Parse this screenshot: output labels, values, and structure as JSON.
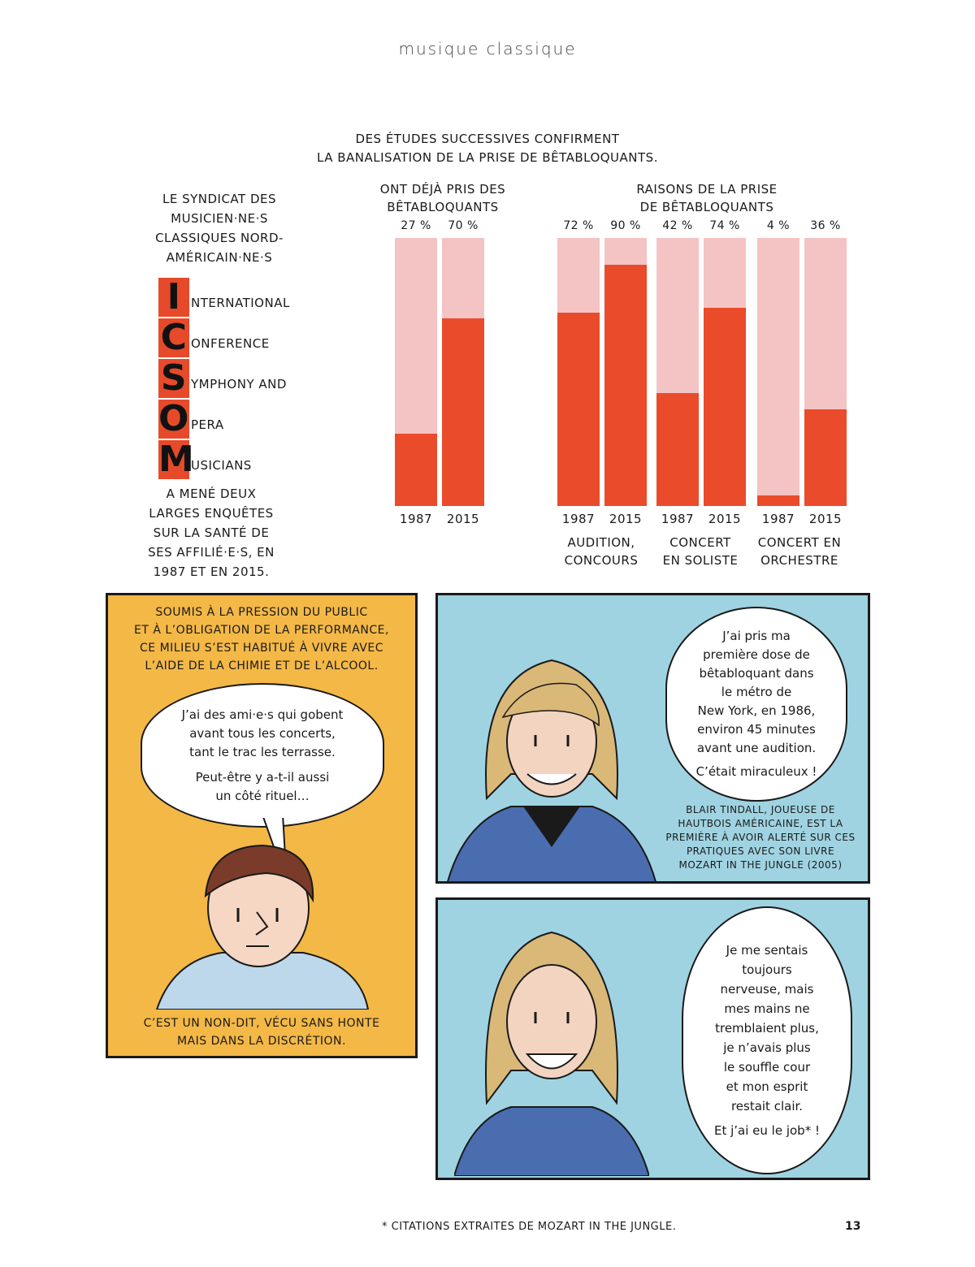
{
  "header": {
    "title": "musique classique"
  },
  "chart": {
    "title_line1": "Des études successives confirment",
    "title_line2": "la banalisation de la prise de bêtabloquants.",
    "group1_label_line1": "Ont déjà pris des",
    "group1_label_line2": "bêtabloquants",
    "group2_label_line1": "Raisons de la prise",
    "group2_label_line2": "de bêtabloquants",
    "categories": [
      {
        "line1": "Audition,",
        "line2": "concours"
      },
      {
        "line1": "Concert",
        "line2": "en soliste"
      },
      {
        "line1": "Concert en",
        "line2": "orchestre"
      }
    ]
  },
  "chart_data": {
    "type": "bar",
    "unit": "%",
    "ylim": [
      0,
      100
    ],
    "bars": [
      {
        "group": "Ont déjà pris des bêtabloquants",
        "year": "1987",
        "value": 27,
        "label": "27 %"
      },
      {
        "group": "Ont déjà pris des bêtabloquants",
        "year": "2015",
        "value": 70,
        "label": "70 %"
      },
      {
        "group": "Audition, concours",
        "year": "1987",
        "value": 72,
        "label": "72 %"
      },
      {
        "group": "Audition, concours",
        "year": "2015",
        "value": 90,
        "label": "90 %"
      },
      {
        "group": "Concert en soliste",
        "year": "1987",
        "value": 42,
        "label": "42 %"
      },
      {
        "group": "Concert en soliste",
        "year": "2015",
        "value": 74,
        "label": "74 %"
      },
      {
        "group": "Concert en orchestre",
        "year": "1987",
        "value": 4,
        "label": "4 %"
      },
      {
        "group": "Concert en orchestre",
        "year": "2015",
        "value": 36,
        "label": "36 %"
      }
    ]
  },
  "icsom": {
    "intro": [
      "Le syndicat des",
      "musicien·ne·s",
      "classiques nord-",
      "américain·ne·s"
    ],
    "rows": [
      {
        "letter": "I",
        "rest": "nternational"
      },
      {
        "letter": "C",
        "rest": "onference"
      },
      {
        "letter": "S",
        "rest": "ymphony and"
      },
      {
        "letter": "O",
        "rest": "pera"
      },
      {
        "letter": "M",
        "rest": "usicians"
      }
    ],
    "outro": [
      "a mené deux",
      "larges enquêtes",
      "sur la santé de",
      "ses affilié·e·s, en",
      "1987 et en 2015."
    ]
  },
  "panel1": {
    "caption_top": [
      "Soumis à la pression du public",
      "et à l’obligation de la performance,",
      "ce milieu s’est habitué à vivre avec",
      "l’aide de la chimie et de l’alcool."
    ],
    "bubble": [
      "J’ai des ami·e·s qui gobent",
      "avant tous les concerts,",
      "tant le trac les terrasse.",
      "Peut-être y a-t-il aussi",
      "un côté rituel…"
    ],
    "caption_bottom": [
      "C’est un non-dit, vécu sans honte",
      "mais dans la discrétion."
    ]
  },
  "panel2": {
    "bubble": [
      "J’ai pris ma",
      "première dose de",
      "bêtabloquant dans",
      "le métro de",
      "New York, en 1986,",
      "environ 45 minutes",
      "avant une audition.",
      "C’était miraculeux !"
    ],
    "caption": [
      "Blair Tindall, joueuse de",
      "hautbois américaine, est la",
      "première à avoir alerté sur ces",
      "pratiques avec son livre",
      "Mozart in the Jungle (2005)"
    ]
  },
  "panel3": {
    "bubble": [
      "Je me sentais",
      "toujours",
      "nerveuse, mais",
      "mes mains ne",
      "tremblaient plus,",
      "je n’avais plus",
      "le souffle cour",
      "et mon esprit",
      "restait clair.",
      "Et j’ai eu le job* !"
    ]
  },
  "footnote": "* Citations extraites de Mozart in the Jungle.",
  "page_number": "13",
  "colors": {
    "bar_light": "#f4c3c3",
    "bar_dark": "#ea4b2b",
    "panel_yellow": "#f4b846",
    "panel_blue": "#9fd3e1"
  }
}
